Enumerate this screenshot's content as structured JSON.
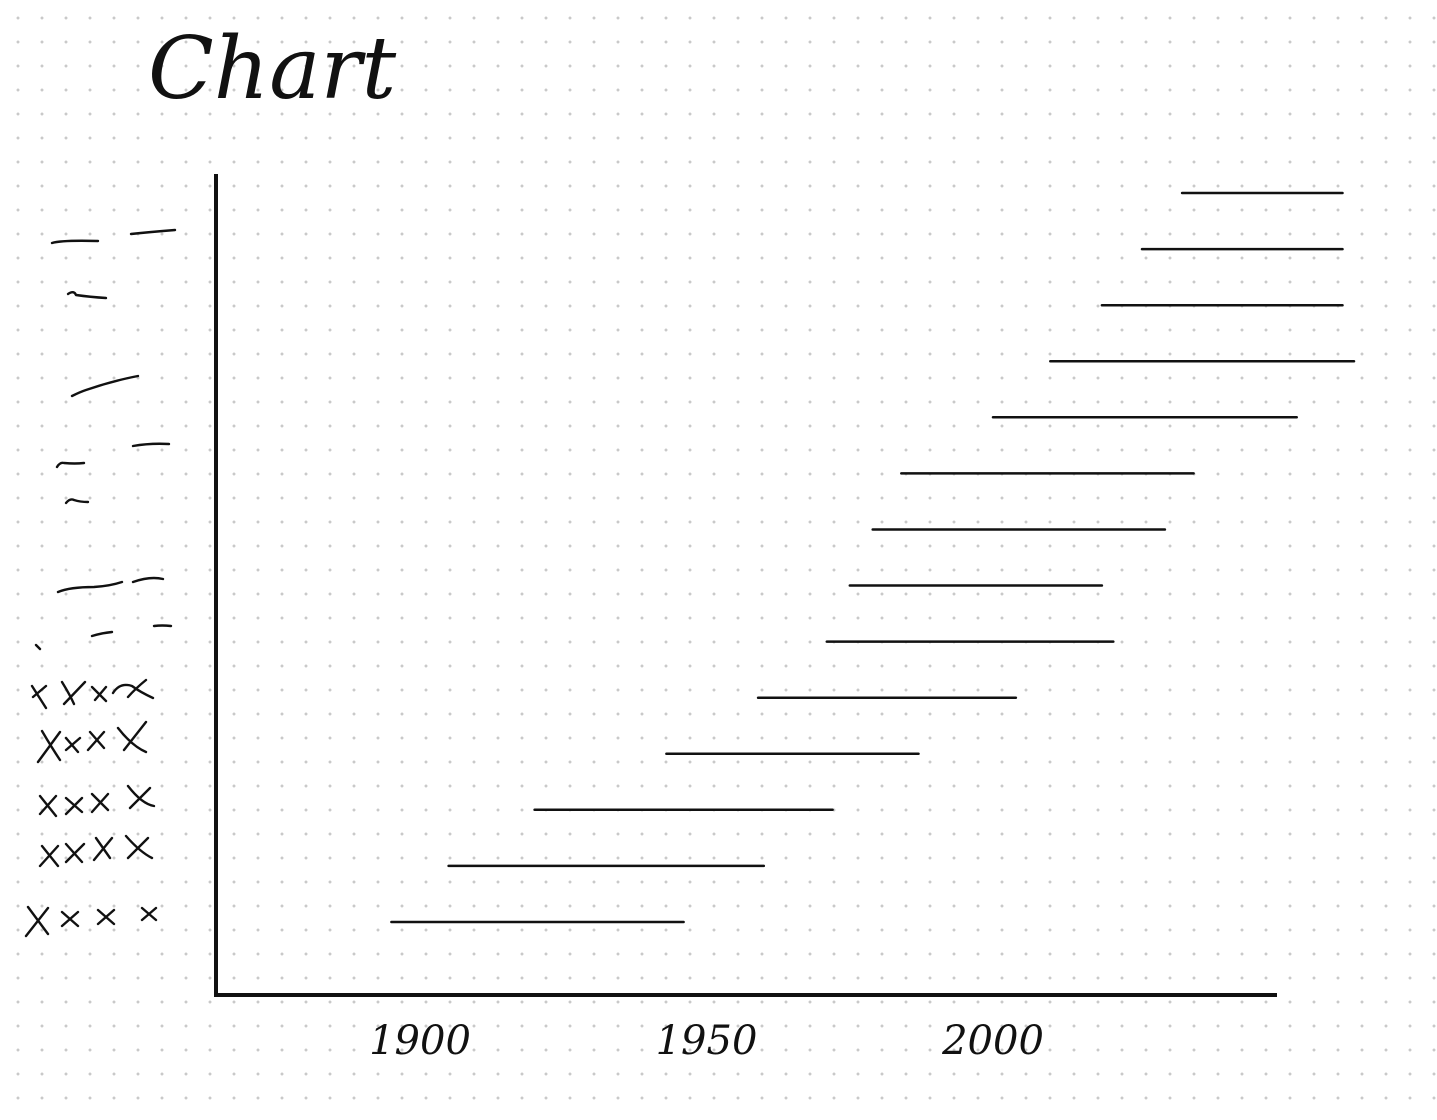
{
  "chart_data": {
    "type": "gantt",
    "title": "Chart",
    "xlabel": "",
    "ylabel": "",
    "x_ticks": [
      "1900",
      "1950",
      "2000"
    ],
    "x_tick_values": [
      1900,
      1950,
      2000
    ],
    "xlim": [
      1880,
      2063
    ],
    "grid": false,
    "legend": "none",
    "category_labels_legible": false,
    "ranges": [
      {
        "start": 1895,
        "end": 1946
      },
      {
        "start": 1905,
        "end": 1960
      },
      {
        "start": 1920,
        "end": 1972
      },
      {
        "start": 1943,
        "end": 1987
      },
      {
        "start": 1959,
        "end": 2004
      },
      {
        "start": 1971,
        "end": 2021
      },
      {
        "start": 1975,
        "end": 2019
      },
      {
        "start": 1979,
        "end": 2030
      },
      {
        "start": 1984,
        "end": 2035
      },
      {
        "start": 2000,
        "end": 2053
      },
      {
        "start": 2010,
        "end": 2063
      },
      {
        "start": 2019,
        "end": 2061
      },
      {
        "start": 2026,
        "end": 2061
      },
      {
        "start": 2033,
        "end": 2061
      }
    ],
    "colors": {
      "ink": "#111111",
      "paper": "#ffffff",
      "dots": "#c9c9c9"
    }
  }
}
